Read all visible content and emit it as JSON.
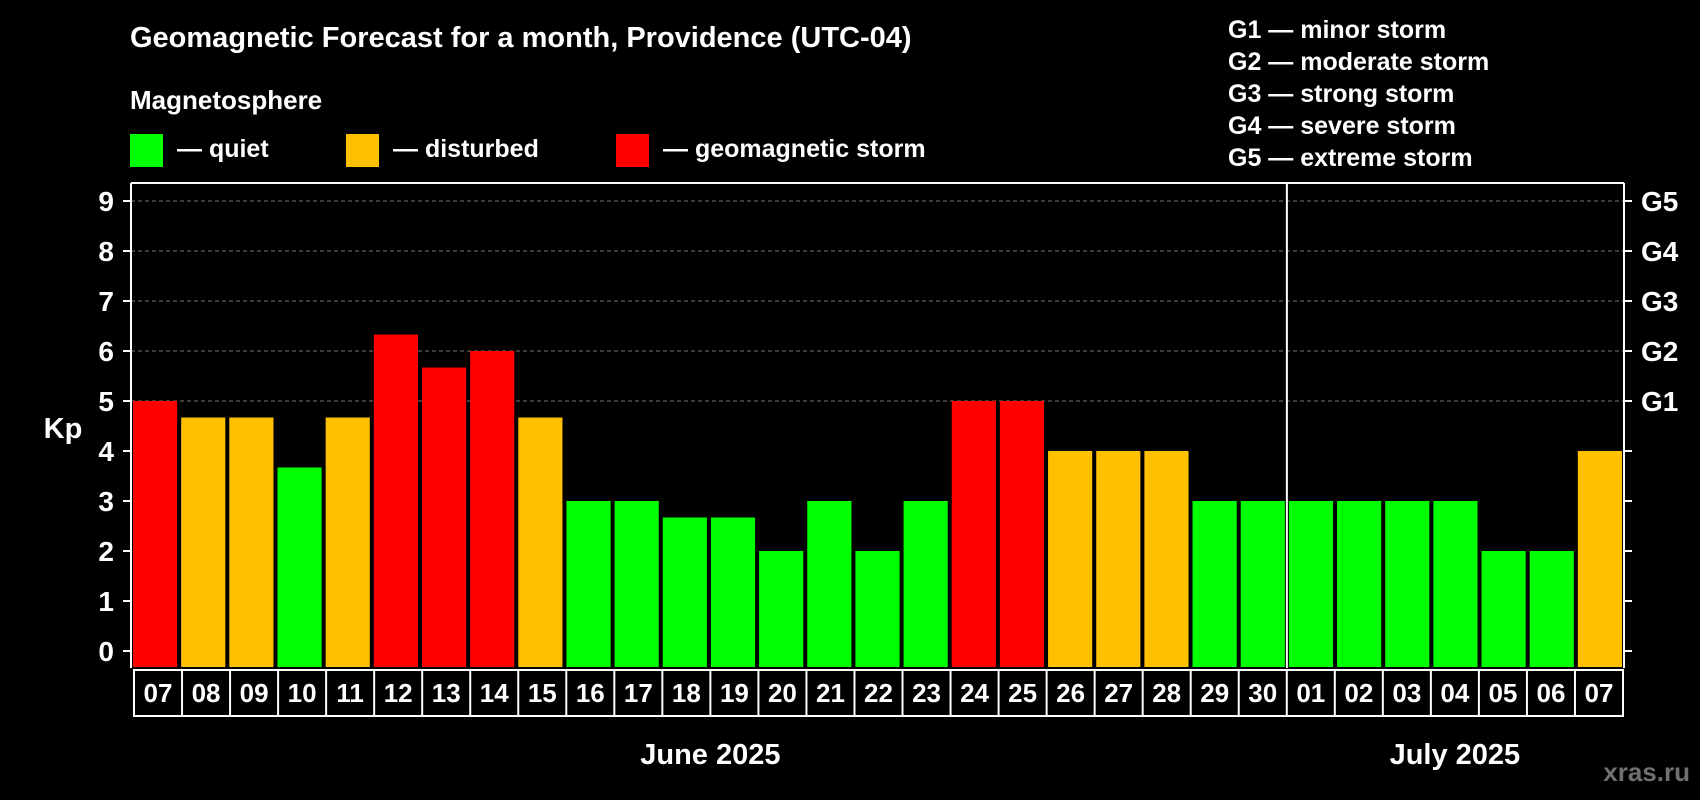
{
  "header": {
    "title": "Geomagnetic Forecast for a month, Providence (UTC-04)",
    "subtitle": "Magnetosphere"
  },
  "legend": [
    {
      "key": "quiet",
      "label": "— quiet",
      "color": "#00ff00"
    },
    {
      "key": "disturbed",
      "label": "— disturbed",
      "color": "#ffc000"
    },
    {
      "key": "storm",
      "label": "— geomagnetic storm",
      "color": "#ff0000"
    }
  ],
  "storm_scale": [
    "G1 — minor storm",
    "G2 — moderate storm",
    "G3 — strong storm",
    "G4 — severe storm",
    "G5 — extreme storm"
  ],
  "watermark": "xras.ru",
  "chart_data": {
    "type": "bar",
    "ylabel": "Kp",
    "ylim": [
      0,
      9
    ],
    "yticks": [
      "0",
      "1",
      "2",
      "3",
      "4",
      "5",
      "6",
      "7",
      "8",
      "9"
    ],
    "right_axis": [
      {
        "kp": 5,
        "label": "G1"
      },
      {
        "kp": 6,
        "label": "G2"
      },
      {
        "kp": 7,
        "label": "G3"
      },
      {
        "kp": 8,
        "label": "G4"
      },
      {
        "kp": 9,
        "label": "G5"
      }
    ],
    "month_labels": [
      {
        "label": "June 2025",
        "from": 0,
        "to": 23
      },
      {
        "label": "July 2025",
        "from": 24,
        "to": 30
      }
    ],
    "month_divider_after": 23,
    "categories": [
      "07",
      "08",
      "09",
      "10",
      "11",
      "12",
      "13",
      "14",
      "15",
      "16",
      "17",
      "18",
      "19",
      "20",
      "21",
      "22",
      "23",
      "24",
      "25",
      "26",
      "27",
      "28",
      "29",
      "30",
      "01",
      "02",
      "03",
      "04",
      "05",
      "06",
      "07"
    ],
    "values": [
      5,
      4.67,
      4.67,
      3.67,
      4.67,
      6.33,
      5.67,
      6,
      4.67,
      3,
      3,
      2.67,
      2.67,
      2,
      3,
      2,
      3,
      5,
      5,
      4,
      4,
      4,
      3,
      3,
      3,
      3,
      3,
      3,
      2,
      2,
      4
    ],
    "levels": [
      "storm",
      "disturbed",
      "disturbed",
      "quiet",
      "disturbed",
      "storm",
      "storm",
      "storm",
      "disturbed",
      "quiet",
      "quiet",
      "quiet",
      "quiet",
      "quiet",
      "quiet",
      "quiet",
      "quiet",
      "storm",
      "storm",
      "disturbed",
      "disturbed",
      "disturbed",
      "quiet",
      "quiet",
      "quiet",
      "quiet",
      "quiet",
      "quiet",
      "quiet",
      "quiet",
      "disturbed"
    ],
    "colors": {
      "quiet": "#00ff00",
      "disturbed": "#ffc000",
      "storm": "#ff0000"
    }
  }
}
